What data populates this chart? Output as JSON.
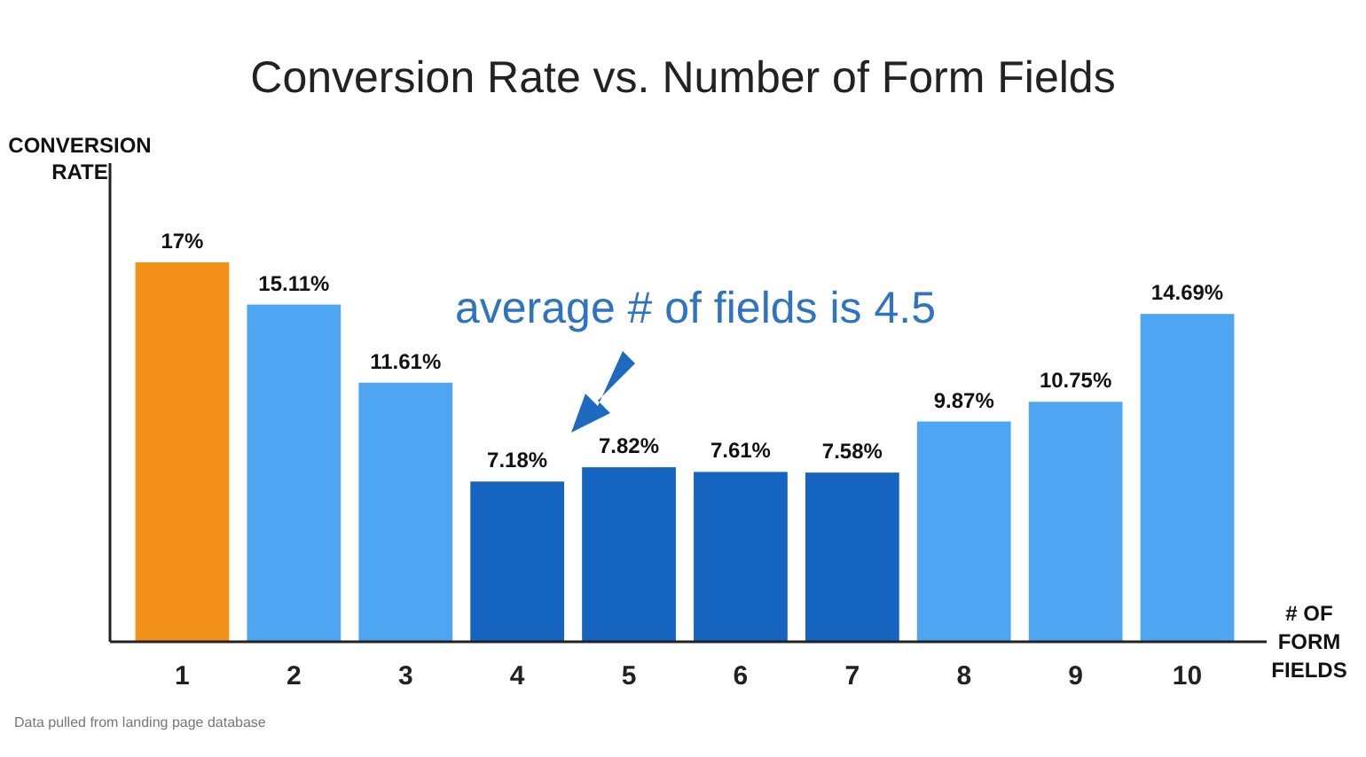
{
  "chart_data": {
    "type": "bar",
    "title": "Conversion Rate vs. Number of Form Fields",
    "xlabel": "# OF FORM FIELDS",
    "ylabel": "CONVERSION RATE",
    "categories": [
      "1",
      "2",
      "3",
      "4",
      "5",
      "6",
      "7",
      "8",
      "9",
      "10"
    ],
    "values": [
      17,
      15.11,
      11.61,
      7.18,
      7.82,
      7.61,
      7.58,
      9.87,
      10.75,
      14.69
    ],
    "colors": [
      "#f39019",
      "#4ea6f2",
      "#4ea6f2",
      "#1565c0",
      "#1565c0",
      "#1565c0",
      "#1565c0",
      "#4ea6f2",
      "#4ea6f2",
      "#4ea6f2"
    ],
    "value_labels": [
      "17%",
      "15.11%",
      "11.61%",
      "7.18%",
      "7.82%",
      "7.61%",
      "7.58%",
      "9.87%",
      "10.75%",
      "14.69%"
    ],
    "relative": false,
    "annotations": [
      "average # of fields is 4.5",
      "Data pulled from landing page database"
    ]
  }
}
